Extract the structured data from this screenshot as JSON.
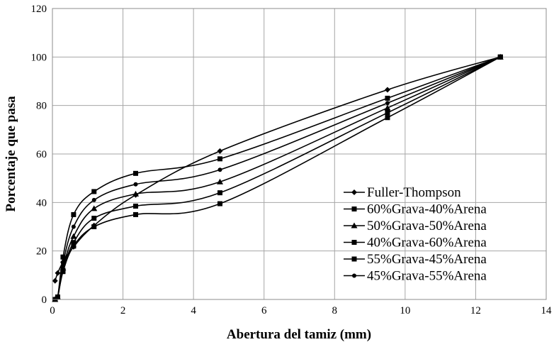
{
  "chart_data": {
    "type": "line",
    "title": "",
    "xlabel": "Abertura del tamiz (mm)",
    "ylabel": "Porcentaje que pasa",
    "xlim": [
      0,
      14
    ],
    "ylim": [
      0,
      120
    ],
    "xticks": [
      "0",
      "2",
      "4",
      "6",
      "8",
      "10",
      "12",
      "14"
    ],
    "yticks": [
      "0",
      "20",
      "40",
      "60",
      "80",
      "100",
      "120"
    ],
    "grid": true,
    "legend_position": "center-right",
    "x": [
      0.075,
      0.15,
      0.3,
      0.6,
      1.18,
      2.36,
      4.75,
      9.5,
      12.7
    ],
    "series": [
      {
        "name": "Fuller-Thompson",
        "marker": "diamond",
        "values": [
          7.7,
          10.9,
          15.4,
          21.7,
          30.5,
          43.1,
          61.2,
          86.5,
          100
        ]
      },
      {
        "name": "60%Grava-40%Arena",
        "marker": "square",
        "values": [
          0,
          1,
          11.5,
          22,
          30,
          35,
          39.5,
          75,
          100
        ]
      },
      {
        "name": "50%Grava-50%Arena",
        "marker": "triangle",
        "values": [
          0,
          1,
          13,
          26,
          37.5,
          43.5,
          48.5,
          79,
          100
        ]
      },
      {
        "name": "40%Grava-60%Arena",
        "marker": "square",
        "values": [
          0,
          1,
          17.5,
          35,
          44.5,
          52,
          58,
          83,
          100
        ]
      },
      {
        "name": "55%Grava-45%Arena",
        "marker": "square",
        "values": [
          0,
          1,
          12,
          23.5,
          33.5,
          38.5,
          44,
          77,
          100
        ]
      },
      {
        "name": "45%Grava-55%Arena",
        "marker": "circle",
        "values": [
          0,
          1,
          15,
          30,
          41,
          47.5,
          53.5,
          81,
          100
        ]
      }
    ]
  }
}
